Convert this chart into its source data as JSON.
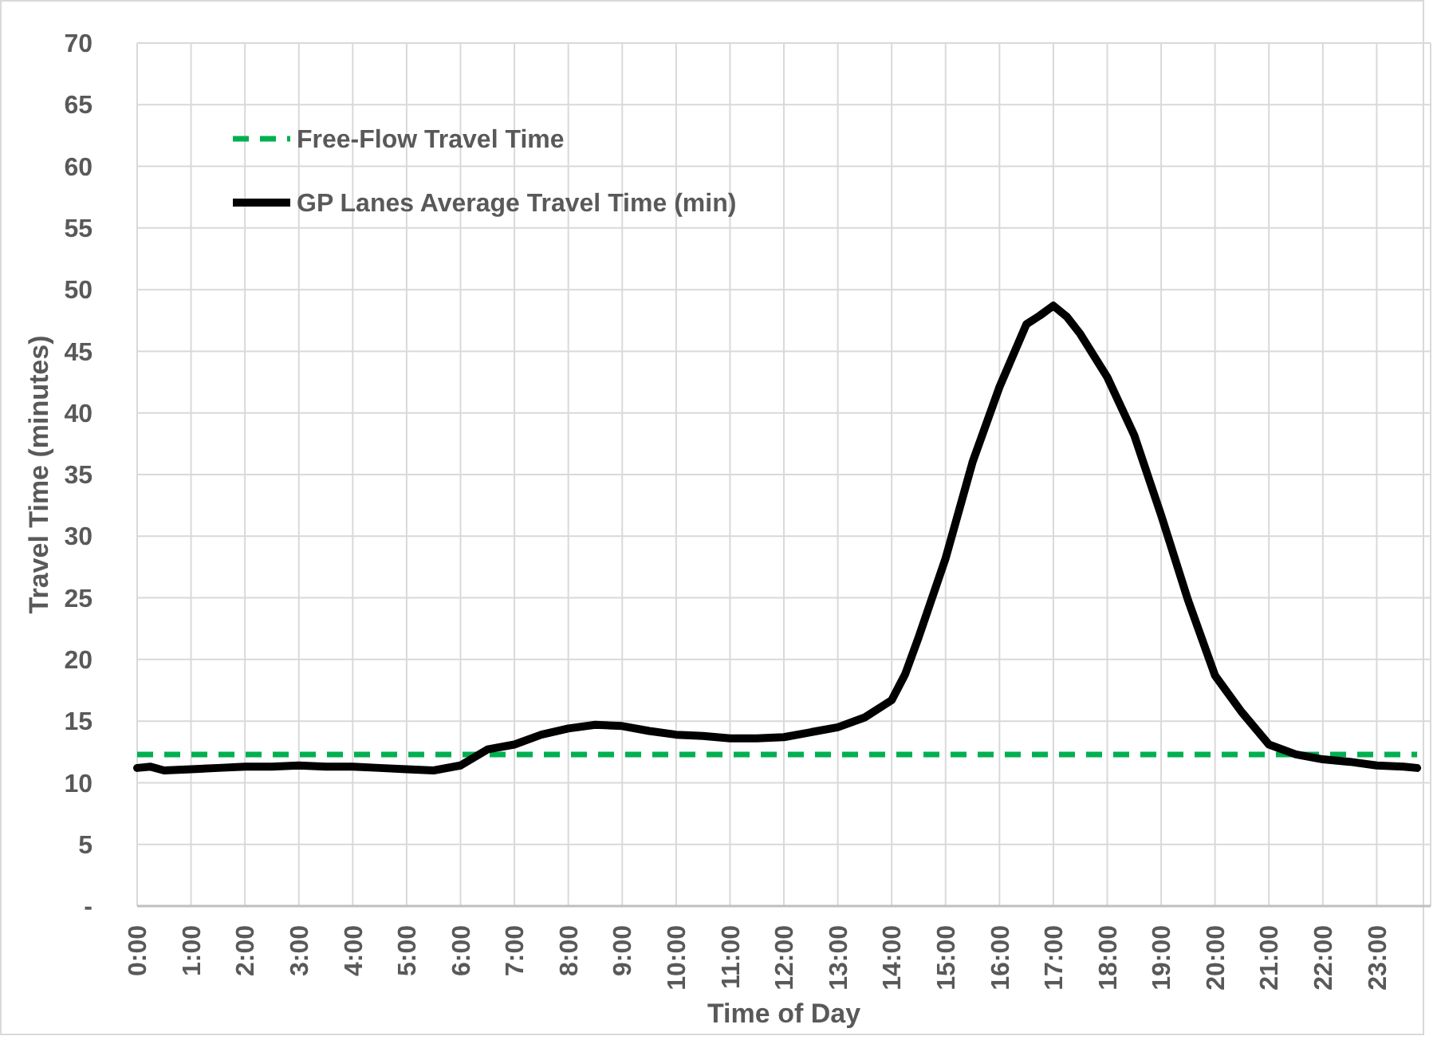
{
  "chart_data": {
    "type": "line",
    "xlabel": "Time of Day",
    "ylabel": "Travel Time (minutes)",
    "xlim": [
      0,
      24
    ],
    "xticks": [
      {
        "value": 0,
        "label": "0:00"
      },
      {
        "value": 1,
        "label": "1:00"
      },
      {
        "value": 2,
        "label": "2:00"
      },
      {
        "value": 3,
        "label": "3:00"
      },
      {
        "value": 4,
        "label": "4:00"
      },
      {
        "value": 5,
        "label": "5:00"
      },
      {
        "value": 6,
        "label": "6:00"
      },
      {
        "value": 7,
        "label": "7:00"
      },
      {
        "value": 8,
        "label": "8:00"
      },
      {
        "value": 9,
        "label": "9:00"
      },
      {
        "value": 10,
        "label": "10:00"
      },
      {
        "value": 11,
        "label": "11:00"
      },
      {
        "value": 12,
        "label": "12:00"
      },
      {
        "value": 13,
        "label": "13:00"
      },
      {
        "value": 14,
        "label": "14:00"
      },
      {
        "value": 15,
        "label": "15:00"
      },
      {
        "value": 16,
        "label": "16:00"
      },
      {
        "value": 17,
        "label": "17:00"
      },
      {
        "value": 18,
        "label": "18:00"
      },
      {
        "value": 19,
        "label": "19:00"
      },
      {
        "value": 20,
        "label": "20:00"
      },
      {
        "value": 21,
        "label": "21:00"
      },
      {
        "value": 22,
        "label": "22:00"
      },
      {
        "value": 23,
        "label": "23:00"
      }
    ],
    "ylim": [
      0,
      70
    ],
    "yticks": [
      {
        "value": 0,
        "label": "-"
      },
      5,
      10,
      15,
      20,
      25,
      30,
      35,
      40,
      45,
      50,
      55,
      60,
      65,
      70
    ],
    "grid": true,
    "legend": "top left",
    "series": [
      {
        "name": "Free-Flow Travel Time",
        "color": "#00b050",
        "line_style": "dashed",
        "x": [
          0,
          23.75
        ],
        "values": [
          12.3,
          12.3
        ]
      },
      {
        "name": "GP Lanes Average Travel Time (min)",
        "color": "#000000",
        "line_style": "solid",
        "x": [
          0,
          0.25,
          0.5,
          1,
          1.5,
          2,
          2.5,
          3,
          3.5,
          4,
          4.5,
          5,
          5.5,
          6,
          6.5,
          7,
          7.5,
          8,
          8.5,
          9,
          9.5,
          10,
          10.5,
          11,
          11.5,
          12,
          12.5,
          13,
          13.5,
          14,
          14.25,
          14.5,
          15,
          15.5,
          16,
          16.5,
          16.75,
          17,
          17.25,
          17.5,
          18,
          18.5,
          19,
          19.5,
          20,
          20.5,
          21,
          21.5,
          22,
          22.5,
          23,
          23.5,
          23.75
        ],
        "values": [
          11.2,
          11.3,
          11.0,
          11.1,
          11.2,
          11.3,
          11.3,
          11.4,
          11.3,
          11.3,
          11.2,
          11.1,
          11.0,
          11.4,
          12.7,
          13.1,
          13.9,
          14.4,
          14.7,
          14.6,
          14.2,
          13.9,
          13.8,
          13.6,
          13.6,
          13.7,
          14.1,
          14.5,
          15.3,
          16.7,
          18.8,
          21.8,
          28.2,
          36.0,
          42.1,
          47.2,
          47.9,
          48.7,
          47.8,
          46.4,
          42.9,
          38.2,
          31.7,
          24.8,
          18.7,
          15.7,
          13.1,
          12.3,
          11.9,
          11.7,
          11.4,
          11.3,
          11.2
        ]
      }
    ]
  }
}
